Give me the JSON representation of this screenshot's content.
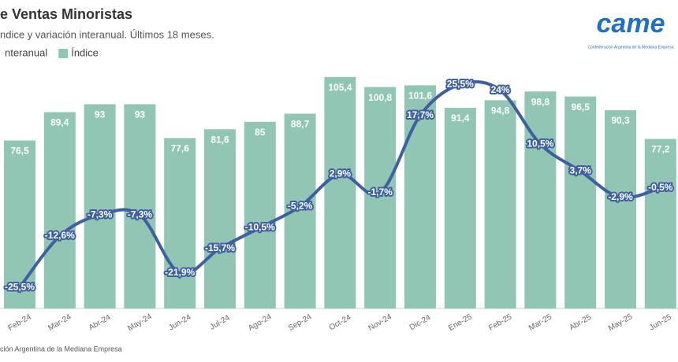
{
  "chart_data": {
    "type": "bar-line",
    "title": "e Ventas Minoristas",
    "subtitle": "ndice y variación interanual. Últimos 18 meses.",
    "source": "ción Argentina de la Mediana Empresa",
    "logo": "came",
    "logo_caption": "Confederación Argentina de la Mediana Empresa",
    "categories": [
      "Feb-24",
      "Mar-24",
      "Abr-24",
      "May-24",
      "Jun-24",
      "Jul-24",
      "Ago-24",
      "Sep-24",
      "Oct-24",
      "Nov-24",
      "Dic-24",
      "Ene-25",
      "Feb-25",
      "Mar-25",
      "Abr-25",
      "May-25",
      "Jun-25"
    ],
    "series": [
      {
        "name": "nteranual",
        "type": "line",
        "axis": "y2",
        "color": "#3f5fa0",
        "values": [
          -25.5,
          -12.6,
          -7.3,
          -7.3,
          -21.9,
          -15.7,
          -10.5,
          -5.2,
          2.9,
          -1.7,
          17.7,
          25.5,
          24,
          10.5,
          3.7,
          -2.9,
          -0.5
        ],
        "value_labels": [
          "-25,5%",
          "-12,6%",
          "-7,3%",
          "-7,3%",
          "-21,9%",
          "-15,7%",
          "-10,5%",
          "-5,2%",
          "2,9%",
          "-1,7%",
          "17,7%",
          "25,5%",
          "24%",
          "10,5%",
          "3,7%",
          "-2,9%",
          "-0,5%"
        ]
      },
      {
        "name": "Índice",
        "type": "bar",
        "color": "#92c6b4",
        "values": [
          76.5,
          89.4,
          93,
          93,
          77.6,
          81.6,
          85,
          88.7,
          105.4,
          100.8,
          101.6,
          91.4,
          94.8,
          98.8,
          96.5,
          90.3,
          77.2
        ],
        "value_labels": [
          "76,5",
          "89,4",
          "93",
          "93",
          "77,6",
          "81,6",
          "85",
          "88,7",
          "105,4",
          "100,8",
          "101,6",
          "91,4",
          "94,8",
          "98,8",
          "96,5",
          "90,3",
          "77,2"
        ]
      }
    ],
    "ylim": [
      0,
      108.2
    ],
    "y2lim": [
      -30.8,
      28.9
    ]
  }
}
